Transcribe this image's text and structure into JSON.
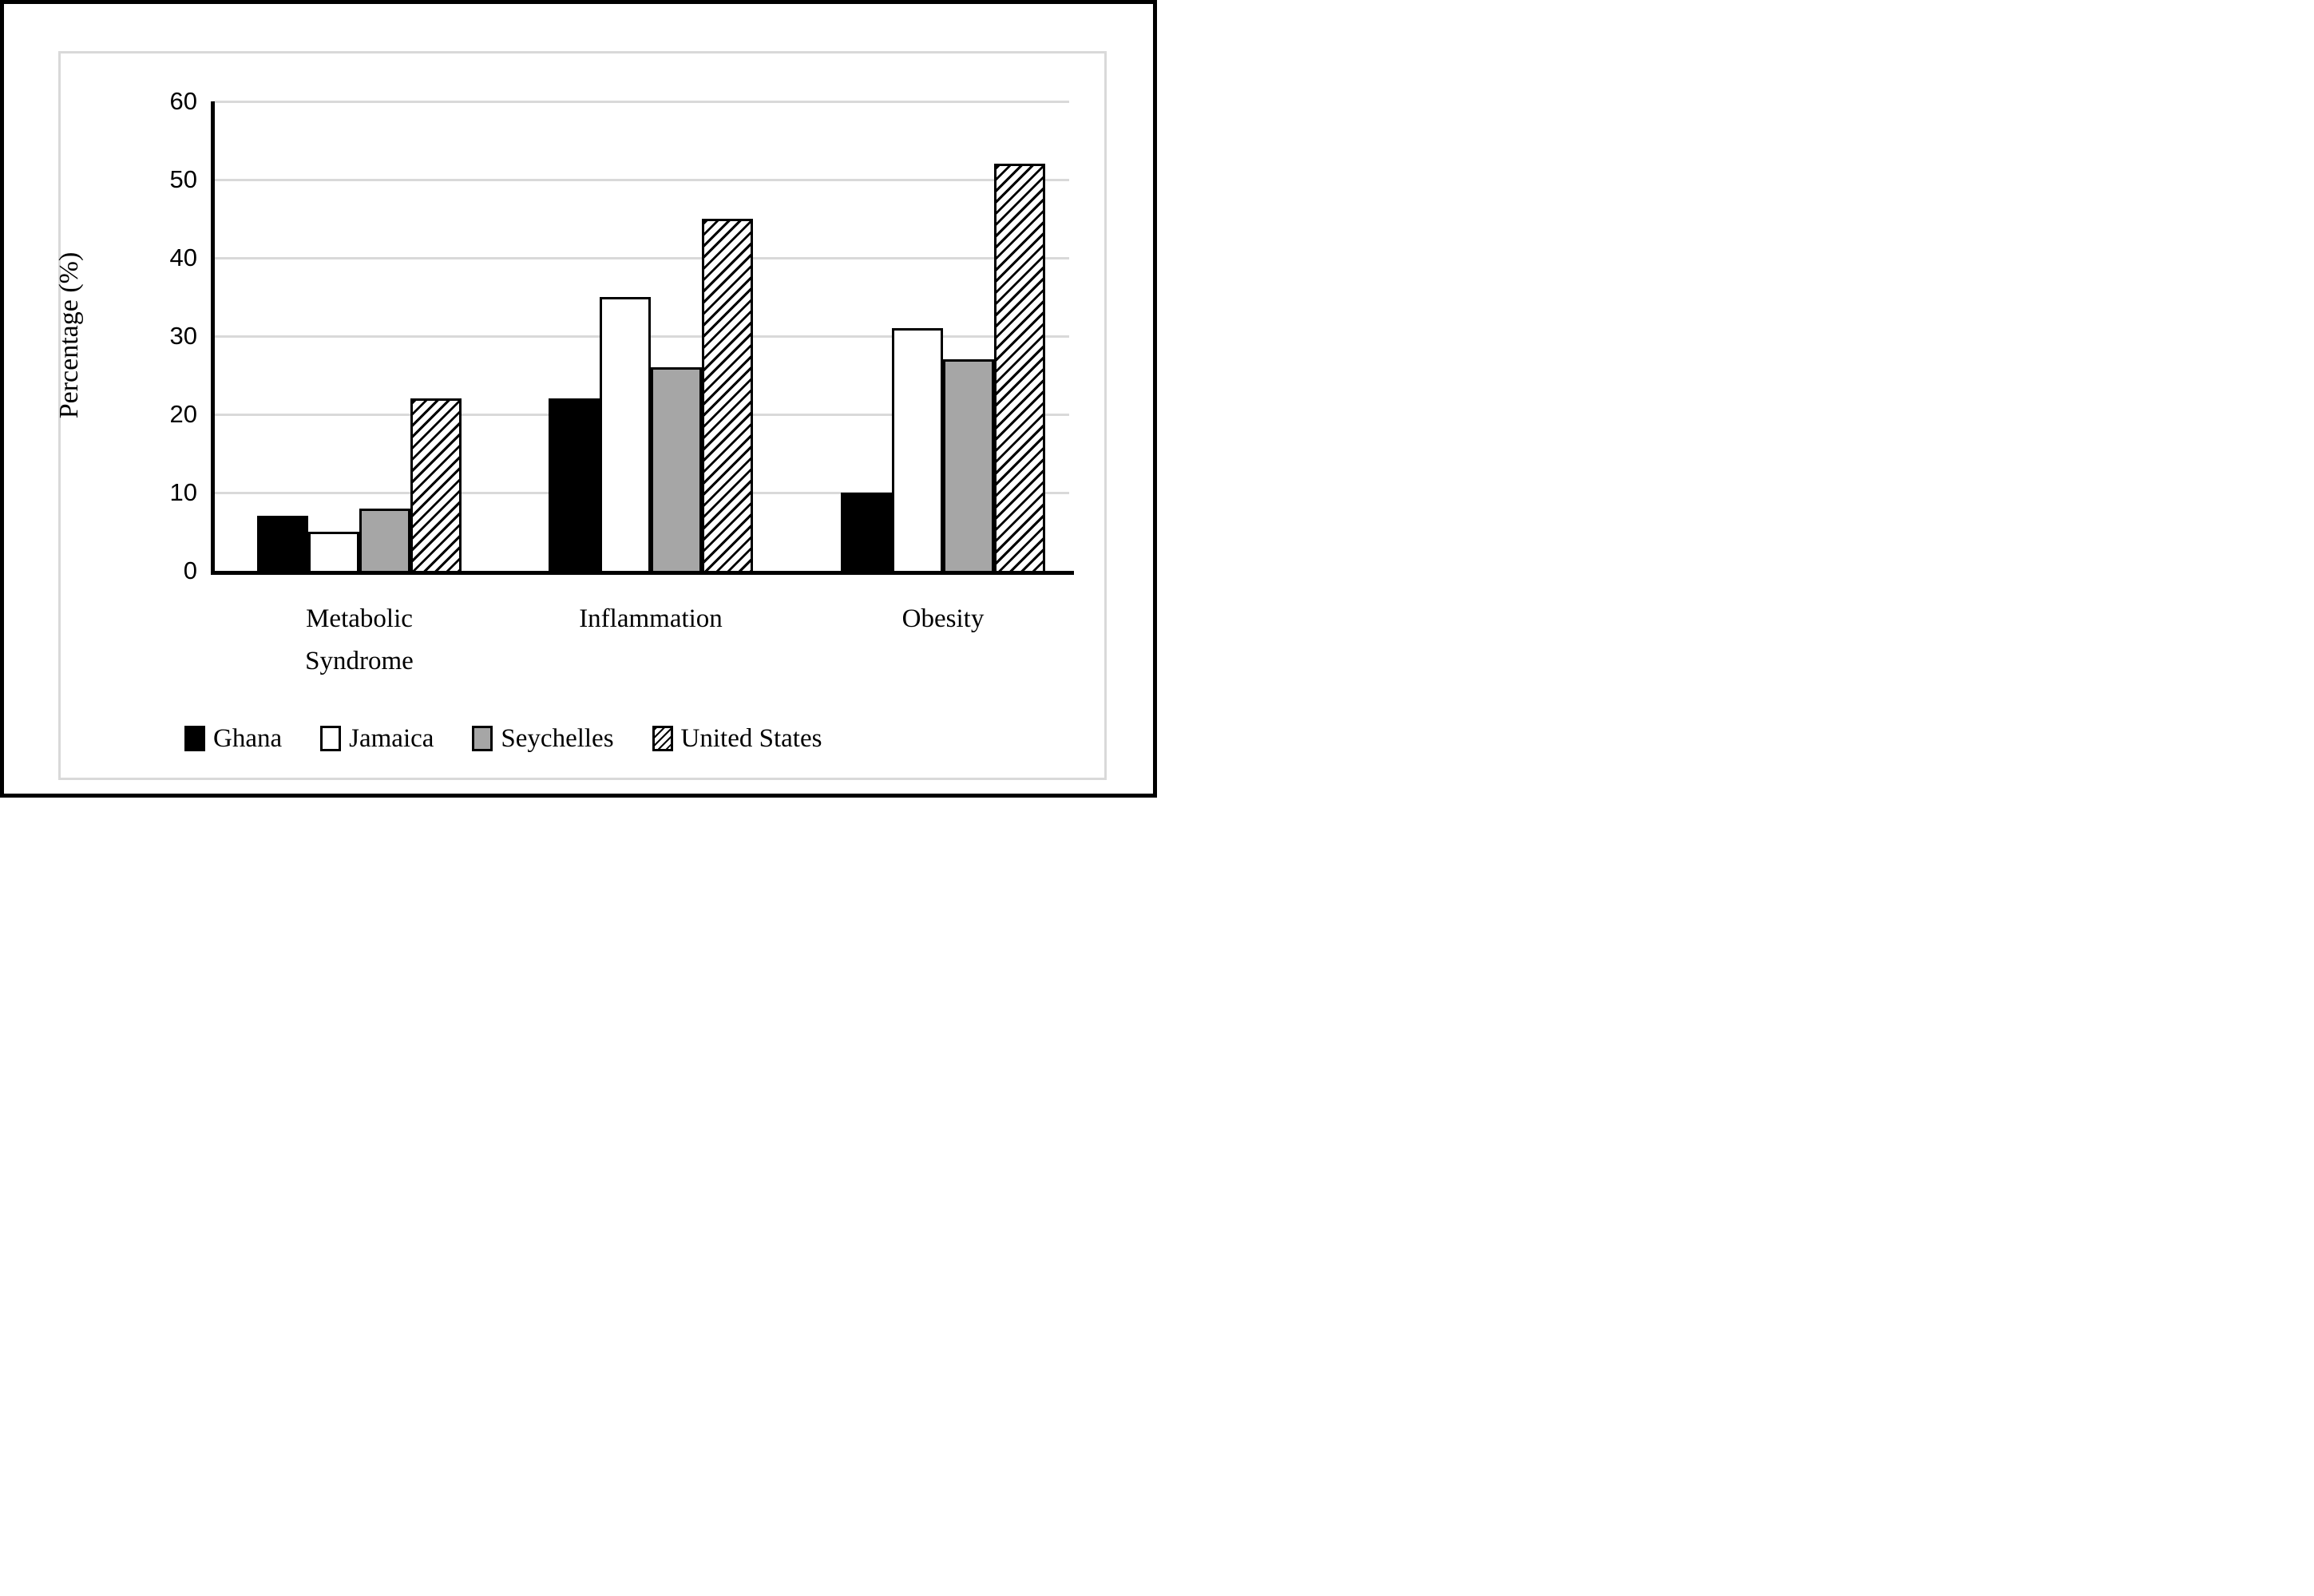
{
  "figure": {
    "outer_border_color": "#000000",
    "inner_frame_color": "#d9d9d9",
    "background_color": "#ffffff",
    "gridline_color": "#d9d9d9"
  },
  "chart_data": {
    "type": "bar",
    "title": "",
    "categories": [
      "Metabolic Syndrome",
      "Inflammation",
      "Obesity"
    ],
    "series": [
      {
        "name": "Ghana",
        "values": [
          7,
          22,
          10
        ],
        "fill": "#000000",
        "pattern": "solid"
      },
      {
        "name": "Jamaica",
        "values": [
          5,
          35,
          31
        ],
        "fill": "#ffffff",
        "pattern": "solid-outlined"
      },
      {
        "name": "Seychelles",
        "values": [
          8,
          26,
          27
        ],
        "fill": "#a6a6a6",
        "pattern": "solid-outlined"
      },
      {
        "name": "United States",
        "values": [
          22,
          45,
          52
        ],
        "fill": "#ffffff",
        "pattern": "diagonal-hatch"
      }
    ],
    "xlabel": "",
    "ylabel": "Percentage (%)",
    "ylim": [
      0,
      60
    ],
    "yticks": [
      0,
      10,
      20,
      30,
      40,
      50,
      60
    ],
    "grid": true,
    "legend_position": "bottom",
    "legend_entries": [
      "Ghana",
      "Jamaica",
      "Seychelles",
      "United States"
    ]
  }
}
